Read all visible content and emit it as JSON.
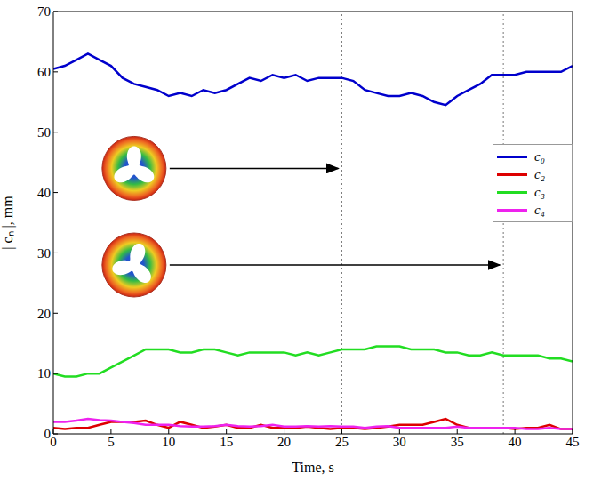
{
  "chart_data": {
    "type": "line",
    "x_label": "Time, s",
    "y_label": "| cₙ |, mm",
    "x": [
      0,
      1,
      2,
      3,
      4,
      5,
      6,
      7,
      8,
      9,
      10,
      11,
      12,
      13,
      14,
      15,
      16,
      17,
      18,
      19,
      20,
      21,
      22,
      23,
      24,
      25,
      26,
      27,
      28,
      29,
      30,
      31,
      32,
      33,
      34,
      35,
      36,
      37,
      38,
      39,
      40,
      41,
      42,
      43,
      44,
      45
    ],
    "series": [
      {
        "name": "c₀",
        "color": "#0000cc",
        "values": [
          60.5,
          61,
          62,
          63,
          62,
          61,
          59,
          58,
          57.5,
          57,
          56,
          56.5,
          56,
          57,
          56.5,
          57,
          58,
          59,
          58.5,
          59.5,
          59,
          59.5,
          58.5,
          59,
          59,
          59,
          58.5,
          57,
          56.5,
          56,
          56,
          56.5,
          56,
          55,
          54.5,
          56,
          57,
          58,
          59.5,
          59.5,
          59.5,
          60,
          60,
          60,
          60,
          61
        ]
      },
      {
        "name": "c₂",
        "color": "#dd0000",
        "values": [
          1,
          0.8,
          1,
          1,
          1.5,
          2,
          2,
          2,
          2.2,
          1.5,
          1,
          2,
          1.5,
          1,
          1.2,
          1.5,
          1,
          1,
          1.5,
          1,
          1,
          1,
          1.2,
          1,
          0.8,
          1,
          1,
          0.8,
          1,
          1.2,
          1.5,
          1.5,
          1.5,
          2,
          2.5,
          1.5,
          1,
          1,
          1,
          1,
          0.8,
          1,
          1,
          1.5,
          0.8,
          0.8
        ]
      },
      {
        "name": "c₃",
        "color": "#22dd22",
        "values": [
          10,
          9.5,
          9.5,
          10,
          10,
          11,
          12,
          13,
          14,
          14,
          14,
          13.5,
          13.5,
          14,
          14,
          13.5,
          13,
          13.5,
          13.5,
          13.5,
          13.5,
          13,
          13.5,
          13,
          13.5,
          14,
          14,
          14,
          14.5,
          14.5,
          14.5,
          14,
          14,
          14,
          13.5,
          13.5,
          13,
          13,
          13.5,
          13,
          13,
          13,
          13,
          12.5,
          12.5,
          12
        ]
      },
      {
        "name": "c₄",
        "color": "#ee22ee",
        "values": [
          2,
          2,
          2.2,
          2.5,
          2.3,
          2.2,
          2,
          1.8,
          1.5,
          1.5,
          1.5,
          1.3,
          1.2,
          1.2,
          1.3,
          1.5,
          1.3,
          1.2,
          1.3,
          1.5,
          1.2,
          1.2,
          1.3,
          1.2,
          1.3,
          1.2,
          1.2,
          1,
          1.2,
          1.3,
          1,
          1,
          1,
          1,
          1,
          1.2,
          1,
          1,
          1,
          1,
          1,
          0.8,
          0.8,
          1,
          0.8,
          0.8
        ]
      }
    ],
    "xlim": [
      0,
      45
    ],
    "ylim": [
      0,
      70
    ],
    "xticks": [
      0,
      5,
      10,
      15,
      20,
      25,
      30,
      35,
      40,
      45
    ],
    "yticks": [
      0,
      10,
      20,
      30,
      40,
      50,
      60,
      70
    ],
    "vlines": [
      25,
      39
    ],
    "legend": "right"
  }
}
